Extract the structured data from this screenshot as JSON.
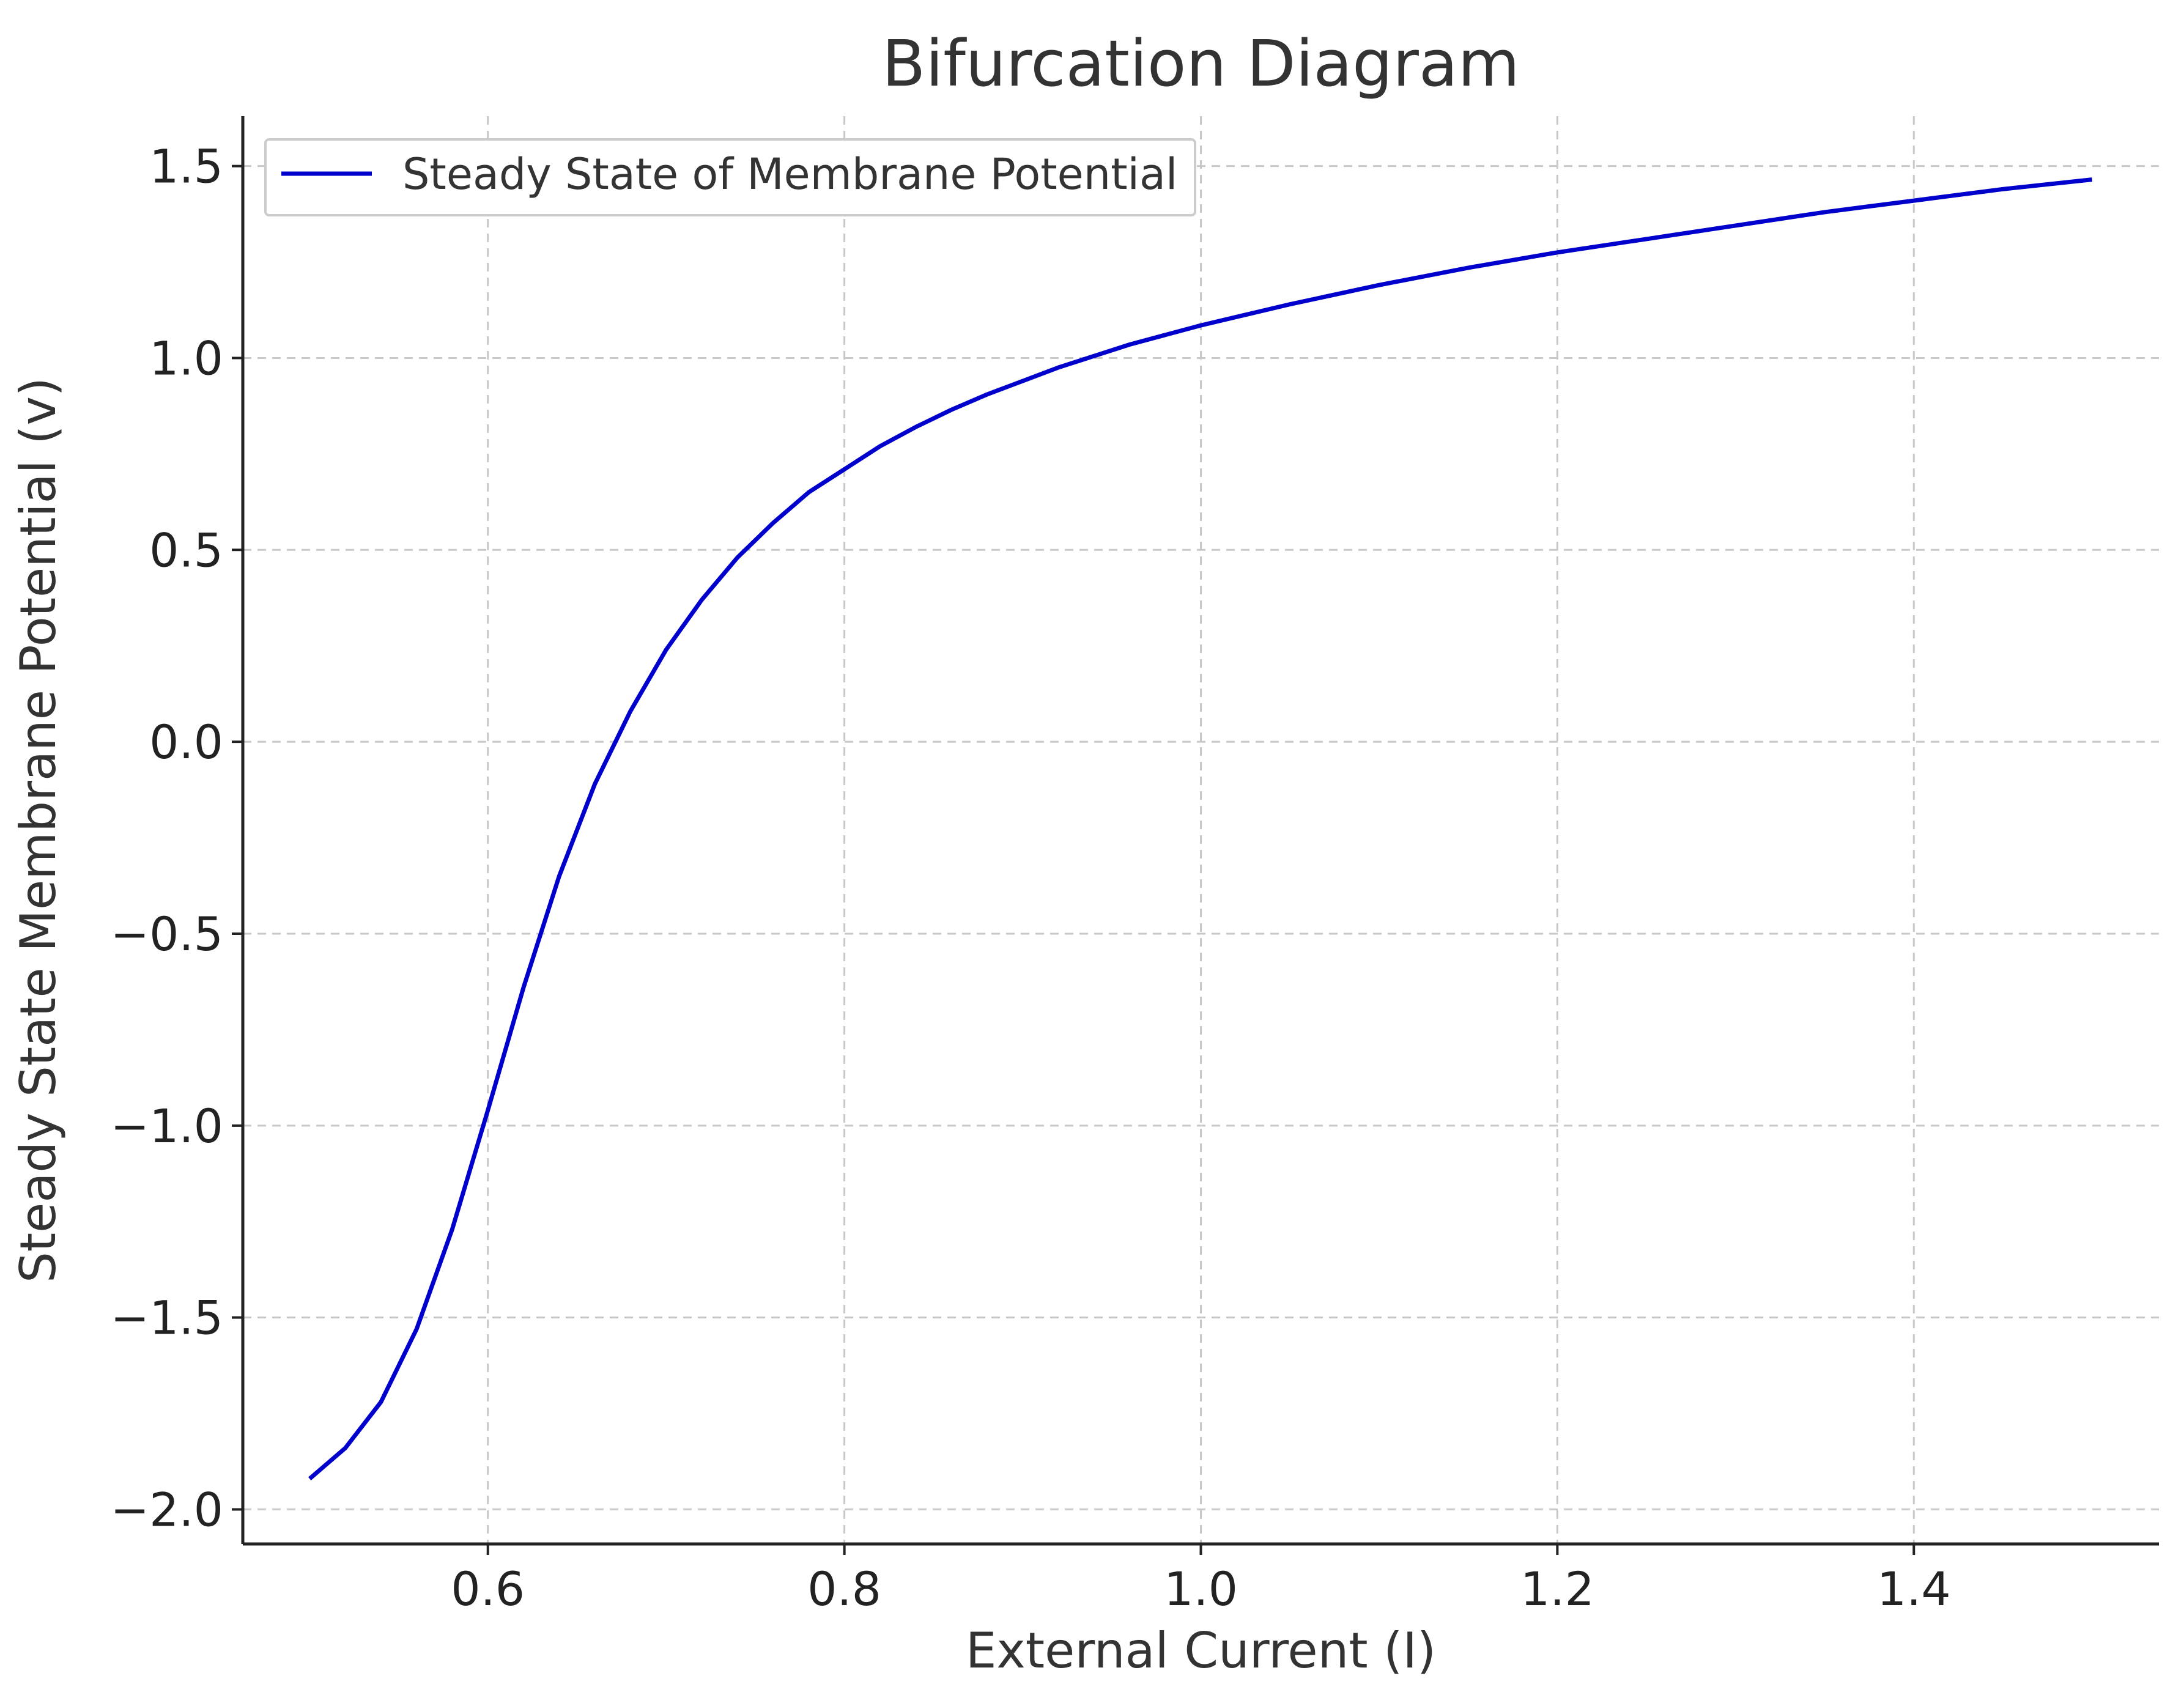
{
  "chart_data": {
    "type": "line",
    "title": "Bifurcation Diagram",
    "xlabel": "External Current (I)",
    "ylabel": "Steady State Membrane Potential (v)",
    "xlim": [
      0.4625,
      1.5375
    ],
    "ylim": [
      -2.09,
      1.63
    ],
    "xticks": [
      0.6,
      0.8,
      1.0,
      1.2,
      1.4
    ],
    "xtick_labels": [
      "0.6",
      "0.8",
      "1.0",
      "1.2",
      "1.4"
    ],
    "yticks": [
      1.5,
      1.0,
      0.5,
      0.0,
      -0.5,
      -1.0,
      -1.5,
      -2.0
    ],
    "ytick_labels": [
      "1.5",
      "1.0",
      "0.5",
      "0.0",
      "−0.5",
      "−1.0",
      "−1.5",
      "−2.0"
    ],
    "grid": true,
    "legend_position": "top-left",
    "series": [
      {
        "name": "Steady State of Membrane Potential",
        "color": "#0000cc",
        "x": [
          0.5,
          0.52,
          0.54,
          0.56,
          0.58,
          0.6,
          0.62,
          0.64,
          0.66,
          0.68,
          0.7,
          0.72,
          0.74,
          0.76,
          0.78,
          0.8,
          0.82,
          0.84,
          0.86,
          0.88,
          0.9,
          0.92,
          0.94,
          0.96,
          0.98,
          1.0,
          1.05,
          1.1,
          1.15,
          1.2,
          1.25,
          1.3,
          1.35,
          1.4,
          1.45,
          1.5
        ],
        "y": [
          -1.92,
          -1.84,
          -1.72,
          -1.53,
          -1.27,
          -0.96,
          -0.64,
          -0.35,
          -0.11,
          0.08,
          0.24,
          0.37,
          0.48,
          0.57,
          0.65,
          0.71,
          0.77,
          0.82,
          0.865,
          0.905,
          0.94,
          0.975,
          1.005,
          1.035,
          1.06,
          1.085,
          1.14,
          1.19,
          1.235,
          1.275,
          1.31,
          1.345,
          1.38,
          1.41,
          1.44,
          1.465
        ]
      }
    ]
  }
}
